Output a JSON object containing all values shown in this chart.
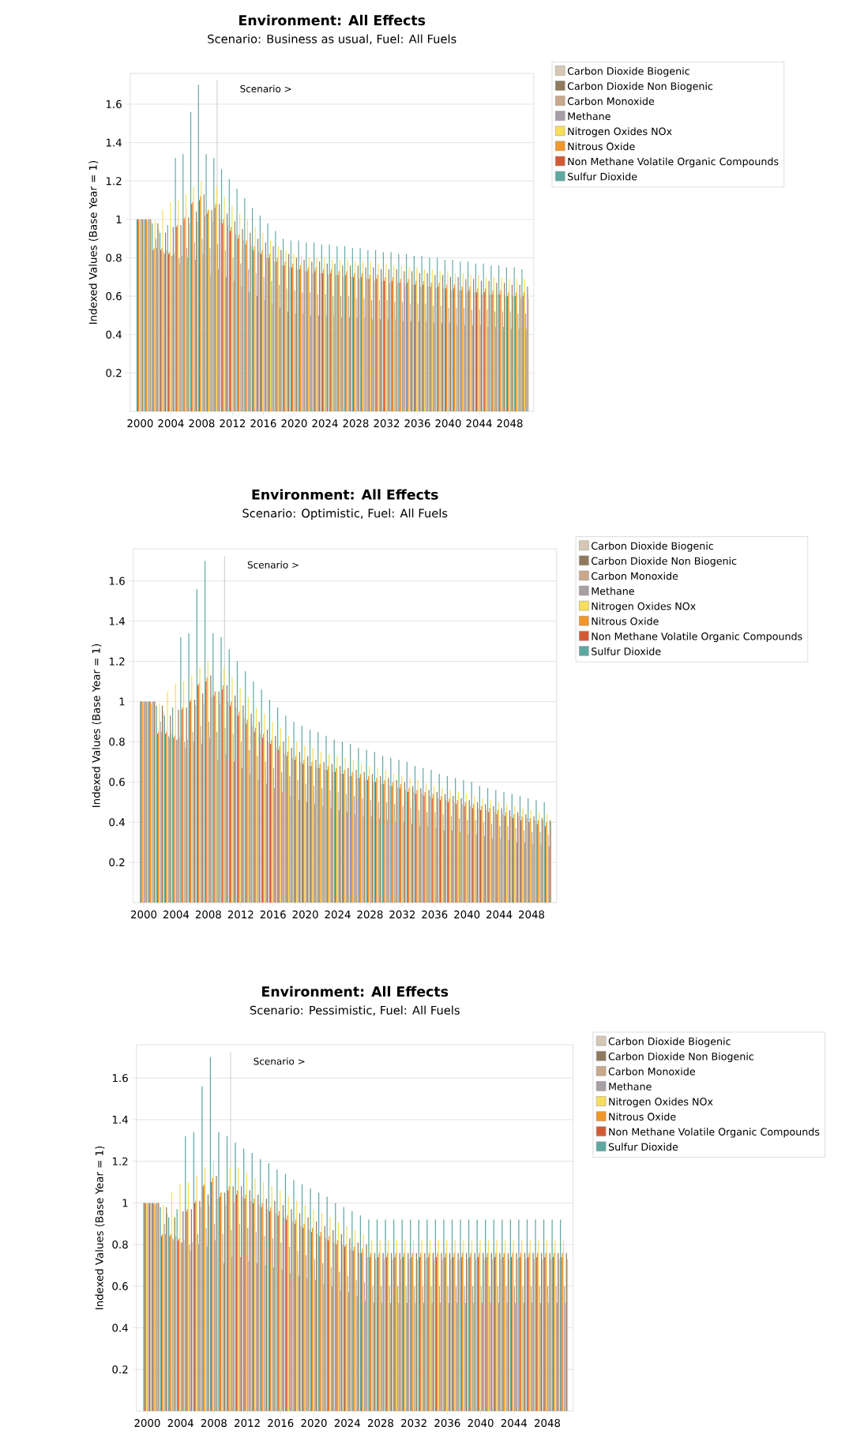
{
  "chart_data": [
    {
      "type": "bar",
      "title": "Environment: All Effects",
      "subtitle": "Scenario: Business as usual, Fuel: All Fuels",
      "ylabel": "Indexed Values (Base Year = 1)",
      "x": [
        2000,
        2001,
        2002,
        2003,
        2004,
        2005,
        2006,
        2007,
        2008,
        2009,
        2010,
        2011,
        2012,
        2013,
        2014,
        2015,
        2016,
        2017,
        2018,
        2019,
        2020,
        2021,
        2022,
        2023,
        2024,
        2025,
        2026,
        2027,
        2028,
        2029,
        2030,
        2031,
        2032,
        2033,
        2034,
        2035,
        2036,
        2037,
        2038,
        2039,
        2040,
        2041,
        2042,
        2043,
        2044,
        2045,
        2046,
        2047,
        2048,
        2049,
        2050
      ],
      "xlim": [
        1998.7,
        2051.1
      ],
      "ylim": [
        0,
        1.76
      ],
      "xticks": [
        2000,
        2004,
        2008,
        2012,
        2016,
        2020,
        2024,
        2028,
        2032,
        2036,
        2040,
        2044,
        2048
      ],
      "yticks": [
        0.2,
        0.4,
        0.6,
        0.8,
        1,
        1.2,
        1.4,
        1.6
      ],
      "grid": "y",
      "legend": "right",
      "ref_lines": [
        {
          "axis": "x",
          "value": 2010,
          "label": "Scenario >",
          "color": "#a0a0a0"
        }
      ],
      "series": [
        {
          "name": "Carbon Dioxide Biogenic",
          "color": "#d6c8b4",
          "values": [
            1.0,
            1.0,
            0.95,
            0.84,
            0.82,
            0.81,
            0.98,
            0.99,
            1.02,
            0.99,
            1.0,
            0.97,
            0.92,
            0.89,
            0.86,
            0.83,
            0.8,
            0.78,
            0.76,
            0.75,
            0.74,
            0.73,
            0.72,
            0.72,
            0.71,
            0.71,
            0.7,
            0.7,
            0.69,
            0.69,
            0.68,
            0.68,
            0.67,
            0.67,
            0.66,
            0.66,
            0.65,
            0.65,
            0.64,
            0.64,
            0.63,
            0.63,
            0.62,
            0.62,
            0.61,
            0.61,
            0.61,
            0.6,
            0.6,
            0.59,
            0.59
          ]
        },
        {
          "name": "Carbon Dioxide Non Biogenic",
          "color": "#8f7a5e",
          "values": [
            1.0,
            1.0,
            0.98,
            0.93,
            0.96,
            0.97,
            1.01,
            1.04,
            1.13,
            1.05,
            1.08,
            1.03,
            0.99,
            0.95,
            0.93,
            0.9,
            0.88,
            0.86,
            0.84,
            0.82,
            0.8,
            0.79,
            0.78,
            0.78,
            0.77,
            0.77,
            0.76,
            0.76,
            0.76,
            0.75,
            0.75,
            0.74,
            0.74,
            0.74,
            0.73,
            0.73,
            0.72,
            0.72,
            0.71,
            0.71,
            0.7,
            0.7,
            0.69,
            0.69,
            0.68,
            0.68,
            0.67,
            0.67,
            0.66,
            0.66,
            0.65
          ]
        },
        {
          "name": "Carbon Monoxide",
          "color": "#c9a88c",
          "values": [
            1.0,
            1.0,
            0.85,
            0.82,
            0.81,
            0.77,
            0.8,
            0.79,
            0.82,
            0.71,
            0.74,
            0.7,
            0.68,
            0.65,
            0.62,
            0.6,
            0.58,
            0.56,
            0.54,
            0.52,
            0.51,
            0.51,
            0.5,
            0.5,
            0.5,
            0.5,
            0.49,
            0.49,
            0.49,
            0.49,
            0.48,
            0.48,
            0.48,
            0.48,
            0.47,
            0.47,
            0.47,
            0.47,
            0.46,
            0.46,
            0.46,
            0.45,
            0.45,
            0.45,
            0.45,
            0.44,
            0.44,
            0.44,
            0.43,
            0.43,
            0.43
          ]
        },
        {
          "name": "Methane",
          "color": "#a89fa6",
          "values": [
            1.0,
            1.0,
            0.9,
            0.83,
            0.81,
            0.8,
            0.85,
            0.88,
            0.9,
            0.85,
            0.87,
            0.84,
            0.8,
            0.77,
            0.74,
            0.72,
            0.7,
            0.68,
            0.66,
            0.64,
            0.63,
            0.62,
            0.62,
            0.61,
            0.61,
            0.6,
            0.6,
            0.6,
            0.59,
            0.59,
            0.58,
            0.58,
            0.58,
            0.57,
            0.57,
            0.56,
            0.56,
            0.56,
            0.55,
            0.55,
            0.54,
            0.54,
            0.54,
            0.53,
            0.53,
            0.53,
            0.52,
            0.52,
            0.52,
            0.51,
            0.51
          ]
        },
        {
          "name": "Nitrogen Oxides NOx",
          "color": "#f7de5c",
          "values": [
            1.0,
            0.99,
            0.99,
            1.05,
            1.09,
            1.1,
            1.13,
            1.17,
            1.2,
            1.05,
            1.17,
            1.12,
            1.07,
            1.03,
            1.0,
            0.96,
            0.93,
            0.89,
            0.86,
            0.84,
            0.82,
            0.81,
            0.8,
            0.8,
            0.8,
            0.79,
            0.79,
            0.79,
            0.78,
            0.78,
            0.78,
            0.77,
            0.77,
            0.76,
            0.76,
            0.75,
            0.75,
            0.74,
            0.74,
            0.73,
            0.73,
            0.72,
            0.72,
            0.71,
            0.71,
            0.7,
            0.7,
            0.7,
            0.69,
            0.69,
            0.69
          ]
        },
        {
          "name": "Nitrous Oxide",
          "color": "#f0962a",
          "values": [
            1.0,
            1.0,
            0.85,
            0.85,
            0.83,
            0.97,
            1.01,
            1.09,
            1.12,
            1.05,
            1.08,
            1.0,
            0.96,
            0.92,
            0.89,
            0.86,
            0.84,
            0.82,
            0.8,
            0.78,
            0.77,
            0.76,
            0.75,
            0.75,
            0.74,
            0.74,
            0.73,
            0.73,
            0.72,
            0.72,
            0.71,
            0.71,
            0.7,
            0.7,
            0.69,
            0.69,
            0.68,
            0.68,
            0.67,
            0.67,
            0.66,
            0.66,
            0.65,
            0.65,
            0.64,
            0.64,
            0.63,
            0.63,
            0.62,
            0.62,
            0.62
          ]
        },
        {
          "name": "Non Methane Volatile Organic Compounds",
          "color": "#d45a33",
          "values": [
            1.0,
            1.0,
            0.84,
            0.84,
            0.82,
            0.96,
            1.0,
            1.08,
            1.1,
            1.03,
            1.06,
            0.98,
            0.94,
            0.9,
            0.87,
            0.84,
            0.82,
            0.8,
            0.78,
            0.76,
            0.75,
            0.74,
            0.73,
            0.73,
            0.72,
            0.72,
            0.71,
            0.71,
            0.7,
            0.7,
            0.69,
            0.69,
            0.68,
            0.68,
            0.67,
            0.67,
            0.66,
            0.66,
            0.65,
            0.65,
            0.64,
            0.64,
            0.63,
            0.63,
            0.62,
            0.62,
            0.61,
            0.61,
            0.6,
            0.6,
            0.6
          ]
        },
        {
          "name": "Sulfur Dioxide",
          "color": "#5ea8a2",
          "values": [
            1.0,
            1.0,
            0.98,
            0.93,
            0.97,
            1.32,
            1.34,
            1.56,
            1.7,
            1.34,
            1.32,
            1.26,
            1.21,
            1.16,
            1.11,
            1.06,
            1.02,
            0.98,
            0.94,
            0.9,
            0.89,
            0.89,
            0.88,
            0.88,
            0.87,
            0.87,
            0.86,
            0.86,
            0.85,
            0.85,
            0.84,
            0.84,
            0.83,
            0.83,
            0.82,
            0.82,
            0.81,
            0.81,
            0.8,
            0.8,
            0.79,
            0.79,
            0.78,
            0.78,
            0.77,
            0.77,
            0.76,
            0.76,
            0.75,
            0.75,
            0.74
          ]
        }
      ]
    },
    {
      "type": "bar",
      "title": "Environment: All Effects",
      "subtitle": "Scenario: Optimistic, Fuel: All Fuels",
      "ylabel": "Indexed Values (Base Year = 1)",
      "x": [
        2000,
        2001,
        2002,
        2003,
        2004,
        2005,
        2006,
        2007,
        2008,
        2009,
        2010,
        2011,
        2012,
        2013,
        2014,
        2015,
        2016,
        2017,
        2018,
        2019,
        2020,
        2021,
        2022,
        2023,
        2024,
        2025,
        2026,
        2027,
        2028,
        2029,
        2030,
        2031,
        2032,
        2033,
        2034,
        2035,
        2036,
        2037,
        2038,
        2039,
        2040,
        2041,
        2042,
        2043,
        2044,
        2045,
        2046,
        2047,
        2048,
        2049,
        2050
      ],
      "xlim": [
        1998.7,
        2051.1
      ],
      "ylim": [
        0,
        1.76
      ],
      "xticks": [
        2000,
        2004,
        2008,
        2012,
        2016,
        2020,
        2024,
        2028,
        2032,
        2036,
        2040,
        2044,
        2048
      ],
      "yticks": [
        0.2,
        0.4,
        0.6,
        0.8,
        1,
        1.2,
        1.4,
        1.6
      ],
      "grid": "y",
      "legend": "right",
      "ref_lines": [
        {
          "axis": "x",
          "value": 2010,
          "label": "Scenario >",
          "color": "#a0a0a0"
        }
      ],
      "series": [
        {
          "name": "Carbon Dioxide Biogenic",
          "color": "#d6c8b4",
          "values": [
            1.0,
            1.0,
            0.95,
            0.84,
            0.82,
            0.81,
            0.98,
            0.99,
            1.02,
            0.99,
            1.0,
            0.97,
            0.92,
            0.88,
            0.84,
            0.8,
            0.77,
            0.74,
            0.72,
            0.7,
            0.68,
            0.67,
            0.66,
            0.65,
            0.64,
            0.63,
            0.62,
            0.61,
            0.6,
            0.59,
            0.58,
            0.57,
            0.56,
            0.55,
            0.54,
            0.53,
            0.52,
            0.51,
            0.5,
            0.49,
            0.48,
            0.47,
            0.46,
            0.45,
            0.44,
            0.43,
            0.43,
            0.42,
            0.41,
            0.41,
            0.4
          ]
        },
        {
          "name": "Carbon Dioxide Non Biogenic",
          "color": "#8f7a5e",
          "values": [
            1.0,
            1.0,
            0.98,
            0.93,
            0.96,
            0.97,
            1.01,
            1.04,
            1.13,
            1.05,
            1.08,
            1.03,
            0.98,
            0.94,
            0.9,
            0.86,
            0.83,
            0.8,
            0.77,
            0.75,
            0.73,
            0.71,
            0.7,
            0.69,
            0.68,
            0.67,
            0.66,
            0.65,
            0.64,
            0.63,
            0.62,
            0.61,
            0.6,
            0.58,
            0.57,
            0.56,
            0.55,
            0.54,
            0.53,
            0.52,
            0.51,
            0.5,
            0.49,
            0.48,
            0.47,
            0.46,
            0.45,
            0.44,
            0.43,
            0.42,
            0.41
          ]
        },
        {
          "name": "Carbon Monoxide",
          "color": "#c9a88c",
          "values": [
            1.0,
            1.0,
            0.85,
            0.82,
            0.81,
            0.77,
            0.8,
            0.79,
            0.82,
            0.71,
            0.74,
            0.7,
            0.67,
            0.64,
            0.61,
            0.59,
            0.57,
            0.55,
            0.53,
            0.51,
            0.5,
            0.49,
            0.48,
            0.47,
            0.46,
            0.45,
            0.44,
            0.43,
            0.43,
            0.42,
            0.41,
            0.4,
            0.4,
            0.39,
            0.38,
            0.38,
            0.37,
            0.36,
            0.36,
            0.35,
            0.34,
            0.34,
            0.33,
            0.32,
            0.32,
            0.31,
            0.3,
            0.3,
            0.29,
            0.29,
            0.28
          ]
        },
        {
          "name": "Methane",
          "color": "#a89fa6",
          "values": [
            1.0,
            1.0,
            0.9,
            0.83,
            0.81,
            0.8,
            0.85,
            0.88,
            0.9,
            0.85,
            0.87,
            0.84,
            0.8,
            0.76,
            0.73,
            0.7,
            0.67,
            0.65,
            0.63,
            0.61,
            0.59,
            0.58,
            0.57,
            0.56,
            0.55,
            0.54,
            0.53,
            0.52,
            0.51,
            0.5,
            0.5,
            0.49,
            0.48,
            0.47,
            0.46,
            0.45,
            0.45,
            0.44,
            0.43,
            0.42,
            0.41,
            0.41,
            0.4,
            0.39,
            0.38,
            0.38,
            0.37,
            0.36,
            0.35,
            0.35,
            0.34
          ]
        },
        {
          "name": "Nitrogen Oxides NOx",
          "color": "#f7de5c",
          "values": [
            1.0,
            0.99,
            0.99,
            1.05,
            1.09,
            1.1,
            1.13,
            1.17,
            1.2,
            1.05,
            1.17,
            1.12,
            1.07,
            1.02,
            0.97,
            0.94,
            0.9,
            0.87,
            0.83,
            0.8,
            0.78,
            0.77,
            0.75,
            0.74,
            0.73,
            0.72,
            0.71,
            0.69,
            0.68,
            0.67,
            0.66,
            0.64,
            0.63,
            0.62,
            0.61,
            0.59,
            0.58,
            0.57,
            0.56,
            0.55,
            0.54,
            0.53,
            0.52,
            0.51,
            0.5,
            0.49,
            0.48,
            0.47,
            0.46,
            0.45,
            0.44
          ]
        },
        {
          "name": "Nitrous Oxide",
          "color": "#f0962a",
          "values": [
            1.0,
            1.0,
            0.85,
            0.85,
            0.83,
            0.97,
            1.01,
            1.09,
            1.12,
            1.05,
            1.08,
            1.0,
            0.95,
            0.91,
            0.87,
            0.84,
            0.81,
            0.78,
            0.75,
            0.73,
            0.71,
            0.7,
            0.69,
            0.68,
            0.67,
            0.66,
            0.65,
            0.64,
            0.63,
            0.62,
            0.61,
            0.6,
            0.59,
            0.57,
            0.56,
            0.55,
            0.54,
            0.53,
            0.52,
            0.51,
            0.5,
            0.49,
            0.48,
            0.47,
            0.46,
            0.45,
            0.44,
            0.43,
            0.42,
            0.41,
            0.4
          ]
        },
        {
          "name": "Non Methane Volatile Organic Compounds",
          "color": "#d45a33",
          "values": [
            1.0,
            1.0,
            0.84,
            0.84,
            0.82,
            0.96,
            1.0,
            1.08,
            1.1,
            1.03,
            1.06,
            0.98,
            0.93,
            0.89,
            0.85,
            0.82,
            0.79,
            0.76,
            0.73,
            0.71,
            0.69,
            0.68,
            0.67,
            0.66,
            0.65,
            0.64,
            0.63,
            0.62,
            0.61,
            0.6,
            0.59,
            0.58,
            0.57,
            0.55,
            0.54,
            0.53,
            0.52,
            0.51,
            0.5,
            0.49,
            0.48,
            0.47,
            0.46,
            0.45,
            0.44,
            0.43,
            0.42,
            0.41,
            0.4,
            0.39,
            0.38
          ]
        },
        {
          "name": "Sulfur Dioxide",
          "color": "#5ea8a2",
          "values": [
            1.0,
            1.0,
            0.98,
            0.93,
            0.97,
            1.32,
            1.34,
            1.56,
            1.7,
            1.34,
            1.32,
            1.26,
            1.2,
            1.15,
            1.1,
            1.06,
            1.01,
            0.97,
            0.93,
            0.9,
            0.88,
            0.86,
            0.85,
            0.83,
            0.81,
            0.8,
            0.79,
            0.77,
            0.76,
            0.75,
            0.73,
            0.72,
            0.71,
            0.7,
            0.68,
            0.67,
            0.66,
            0.64,
            0.63,
            0.62,
            0.61,
            0.6,
            0.58,
            0.57,
            0.56,
            0.55,
            0.54,
            0.53,
            0.52,
            0.51,
            0.5
          ]
        }
      ]
    },
    {
      "type": "bar",
      "title": "Environment: All Effects",
      "subtitle": "Scenario: Pessimistic, Fuel: All Fuels",
      "ylabel": "Indexed Values (Base Year = 1)",
      "x": [
        2000,
        2001,
        2002,
        2003,
        2004,
        2005,
        2006,
        2007,
        2008,
        2009,
        2010,
        2011,
        2012,
        2013,
        2014,
        2015,
        2016,
        2017,
        2018,
        2019,
        2020,
        2021,
        2022,
        2023,
        2024,
        2025,
        2026,
        2027,
        2028,
        2029,
        2030,
        2031,
        2032,
        2033,
        2034,
        2035,
        2036,
        2037,
        2038,
        2039,
        2040,
        2041,
        2042,
        2043,
        2044,
        2045,
        2046,
        2047,
        2048,
        2049,
        2050
      ],
      "xlim": [
        1998.7,
        2051.1
      ],
      "ylim": [
        0,
        1.76
      ],
      "xticks": [
        2000,
        2004,
        2008,
        2012,
        2016,
        2020,
        2024,
        2028,
        2032,
        2036,
        2040,
        2044,
        2048
      ],
      "yticks": [
        0.2,
        0.4,
        0.6,
        0.8,
        1,
        1.2,
        1.4,
        1.6
      ],
      "grid": "y",
      "legend": "right",
      "ref_lines": [
        {
          "axis": "x",
          "value": 2010,
          "label": "Scenario >",
          "color": "#a0a0a0"
        }
      ],
      "series": [
        {
          "name": "Carbon Dioxide Biogenic",
          "color": "#d6c8b4",
          "values": [
            1.0,
            1.0,
            0.95,
            0.84,
            0.82,
            0.81,
            0.98,
            0.99,
            1.02,
            0.99,
            1.0,
            1.03,
            1.01,
            0.99,
            0.97,
            0.95,
            0.93,
            0.91,
            0.89,
            0.87,
            0.85,
            0.83,
            0.81,
            0.8,
            0.78,
            0.76,
            0.74,
            0.73,
            0.73,
            0.73,
            0.73,
            0.73,
            0.73,
            0.73,
            0.73,
            0.73,
            0.73,
            0.73,
            0.73,
            0.73,
            0.73,
            0.73,
            0.73,
            0.73,
            0.73,
            0.73,
            0.73,
            0.73,
            0.73,
            0.73,
            0.73
          ]
        },
        {
          "name": "Carbon Dioxide Non Biogenic",
          "color": "#8f7a5e",
          "values": [
            1.0,
            1.0,
            0.98,
            0.93,
            0.96,
            0.97,
            1.01,
            1.04,
            1.13,
            1.05,
            1.08,
            1.08,
            1.06,
            1.04,
            1.02,
            1.01,
            0.99,
            0.97,
            0.95,
            0.93,
            0.91,
            0.89,
            0.87,
            0.85,
            0.83,
            0.81,
            0.8,
            0.76,
            0.76,
            0.76,
            0.76,
            0.76,
            0.76,
            0.76,
            0.76,
            0.76,
            0.76,
            0.76,
            0.76,
            0.76,
            0.76,
            0.76,
            0.76,
            0.76,
            0.76,
            0.76,
            0.76,
            0.76,
            0.76,
            0.76,
            0.76
          ]
        },
        {
          "name": "Carbon Monoxide",
          "color": "#c9a88c",
          "values": [
            1.0,
            1.0,
            0.85,
            0.82,
            0.81,
            0.77,
            0.8,
            0.79,
            0.82,
            0.71,
            0.74,
            0.74,
            0.72,
            0.71,
            0.7,
            0.69,
            0.68,
            0.66,
            0.65,
            0.64,
            0.63,
            0.61,
            0.6,
            0.58,
            0.57,
            0.55,
            0.53,
            0.52,
            0.52,
            0.52,
            0.52,
            0.52,
            0.52,
            0.52,
            0.52,
            0.52,
            0.52,
            0.52,
            0.52,
            0.52,
            0.52,
            0.52,
            0.52,
            0.52,
            0.52,
            0.52,
            0.52,
            0.52,
            0.52,
            0.52,
            0.52
          ]
        },
        {
          "name": "Methane",
          "color": "#a89fa6",
          "values": [
            1.0,
            1.0,
            0.9,
            0.83,
            0.81,
            0.8,
            0.85,
            0.88,
            0.9,
            0.85,
            0.87,
            0.9,
            0.88,
            0.86,
            0.84,
            0.83,
            0.81,
            0.79,
            0.77,
            0.75,
            0.73,
            0.71,
            0.69,
            0.67,
            0.65,
            0.63,
            0.62,
            0.6,
            0.6,
            0.6,
            0.6,
            0.6,
            0.6,
            0.6,
            0.6,
            0.6,
            0.6,
            0.6,
            0.6,
            0.6,
            0.6,
            0.6,
            0.6,
            0.6,
            0.6,
            0.6,
            0.6,
            0.6,
            0.6,
            0.6,
            0.6
          ]
        },
        {
          "name": "Nitrogen Oxides NOx",
          "color": "#f7de5c",
          "values": [
            1.0,
            0.99,
            0.99,
            1.05,
            1.09,
            1.1,
            1.13,
            1.17,
            1.2,
            1.05,
            1.17,
            1.17,
            1.15,
            1.12,
            1.1,
            1.08,
            1.06,
            1.03,
            1.01,
            0.99,
            0.97,
            0.95,
            0.93,
            0.91,
            0.89,
            0.87,
            0.85,
            0.82,
            0.82,
            0.82,
            0.82,
            0.82,
            0.82,
            0.82,
            0.82,
            0.82,
            0.82,
            0.82,
            0.82,
            0.82,
            0.82,
            0.82,
            0.82,
            0.82,
            0.82,
            0.82,
            0.82,
            0.82,
            0.82,
            0.82,
            0.82
          ]
        },
        {
          "name": "Nitrous Oxide",
          "color": "#f0962a",
          "values": [
            1.0,
            1.0,
            0.85,
            0.85,
            0.83,
            0.97,
            1.01,
            1.09,
            1.12,
            1.05,
            1.08,
            1.06,
            1.04,
            1.02,
            1.0,
            0.98,
            0.96,
            0.94,
            0.92,
            0.9,
            0.88,
            0.86,
            0.84,
            0.82,
            0.8,
            0.79,
            0.78,
            0.76,
            0.76,
            0.76,
            0.76,
            0.76,
            0.76,
            0.76,
            0.76,
            0.76,
            0.76,
            0.76,
            0.76,
            0.76,
            0.76,
            0.76,
            0.76,
            0.76,
            0.76,
            0.76,
            0.76,
            0.76,
            0.76,
            0.76,
            0.76
          ]
        },
        {
          "name": "Non Methane Volatile Organic Compounds",
          "color": "#d45a33",
          "values": [
            1.0,
            1.0,
            0.84,
            0.84,
            0.82,
            0.96,
            1.0,
            1.08,
            1.1,
            1.03,
            1.06,
            1.04,
            1.02,
            1.0,
            0.98,
            0.96,
            0.94,
            0.92,
            0.9,
            0.88,
            0.86,
            0.84,
            0.82,
            0.8,
            0.79,
            0.77,
            0.76,
            0.74,
            0.74,
            0.74,
            0.74,
            0.74,
            0.74,
            0.74,
            0.74,
            0.74,
            0.74,
            0.74,
            0.74,
            0.74,
            0.74,
            0.74,
            0.74,
            0.74,
            0.74,
            0.74,
            0.74,
            0.74,
            0.74,
            0.74,
            0.74
          ]
        },
        {
          "name": "Sulfur Dioxide",
          "color": "#5ea8a2",
          "values": [
            1.0,
            1.0,
            0.98,
            0.93,
            0.97,
            1.32,
            1.34,
            1.56,
            1.7,
            1.34,
            1.32,
            1.29,
            1.26,
            1.24,
            1.21,
            1.19,
            1.16,
            1.14,
            1.11,
            1.09,
            1.07,
            1.05,
            1.03,
            1.0,
            0.98,
            0.96,
            0.94,
            0.92,
            0.92,
            0.92,
            0.92,
            0.92,
            0.92,
            0.92,
            0.92,
            0.92,
            0.92,
            0.92,
            0.92,
            0.92,
            0.92,
            0.92,
            0.92,
            0.92,
            0.92,
            0.92,
            0.92,
            0.92,
            0.92,
            0.92,
            0.92
          ]
        }
      ]
    }
  ]
}
